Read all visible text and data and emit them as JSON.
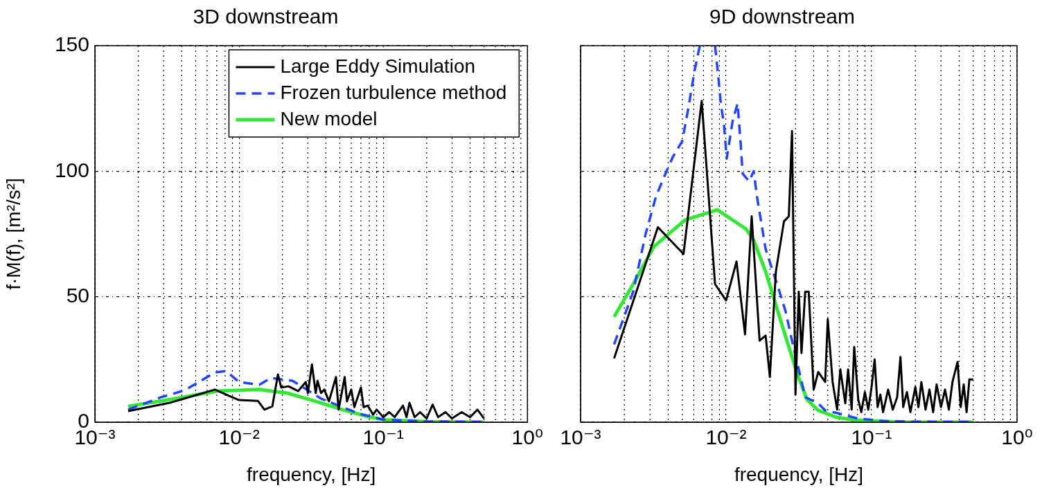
{
  "chart_data": [
    {
      "type": "line",
      "title": "3D downstream",
      "xlabel": "frequency, [Hz]",
      "ylabel": "f·M(f), [m²/s²]",
      "log": "x",
      "grid": true,
      "legend": "top right",
      "xlim": [
        0.001,
        1
      ],
      "xticks": [
        {
          "value": 0.001,
          "label": "10⁻³"
        },
        {
          "value": 0.01,
          "label": "10⁻²"
        },
        {
          "value": 0.1,
          "label": "10⁻¹"
        },
        {
          "value": 1,
          "label": "10⁰"
        }
      ],
      "ylim": [
        0,
        150
      ],
      "yticks": [
        0,
        50,
        100,
        150
      ],
      "series": [
        {
          "name": "Large Eddy Simulation",
          "color": "#000000",
          "line_style": "solid",
          "x": [
            0.0017,
            0.0033,
            0.0068,
            0.0085,
            0.01,
            0.0135,
            0.015,
            0.017,
            0.0186,
            0.0196,
            0.022,
            0.0257,
            0.029,
            0.03,
            0.032,
            0.034,
            0.035,
            0.037,
            0.039,
            0.042,
            0.047,
            0.049,
            0.054,
            0.056,
            0.06,
            0.063,
            0.07,
            0.073,
            0.078,
            0.085,
            0.09,
            0.1,
            0.11,
            0.12,
            0.137,
            0.145,
            0.152,
            0.165,
            0.18,
            0.2,
            0.22,
            0.24,
            0.27,
            0.3,
            0.35,
            0.4,
            0.45,
            0.5
          ],
          "values": [
            4.4,
            7.7,
            13,
            10.5,
            8.8,
            8.5,
            5,
            6.3,
            19,
            13.8,
            14.3,
            12.4,
            16,
            11.6,
            23,
            11.6,
            16.5,
            11.6,
            13,
            8.3,
            18,
            5,
            18,
            8.3,
            13,
            6,
            13.8,
            6,
            6.6,
            3,
            5,
            2,
            4,
            2,
            6.6,
            2,
            7.7,
            2,
            4,
            1.5,
            7,
            2,
            4,
            1.5,
            4,
            2,
            5,
            1.5
          ]
        },
        {
          "name": "Frozen turbulence method",
          "color": "#2244ff",
          "line_style": "dashed",
          "x": [
            0.0017,
            0.0029,
            0.0042,
            0.0068,
            0.0081,
            0.01,
            0.0138,
            0.0166,
            0.0235,
            0.029,
            0.037,
            0.052,
            0.069,
            0.1,
            0.2,
            0.5
          ],
          "values": [
            5,
            10,
            12.7,
            19.8,
            20.4,
            16,
            14.9,
            17.6,
            16.5,
            13.2,
            9.4,
            6,
            3.3,
            1,
            0.3,
            0.1
          ]
        },
        {
          "name": "New model",
          "color": "#33e833",
          "line_style": "solid",
          "x": [
            0.0017,
            0.0036,
            0.0071,
            0.0138,
            0.0215,
            0.034,
            0.052,
            0.075,
            0.1,
            0.2,
            0.5
          ],
          "values": [
            6.3,
            9.4,
            12.4,
            13,
            11.6,
            8.3,
            5,
            2.5,
            1,
            0.2,
            0
          ]
        }
      ]
    },
    {
      "type": "line",
      "title": "9D downstream",
      "xlabel": "frequency, [Hz]",
      "log": "x",
      "grid": true,
      "tick_labels": "x",
      "xlim": [
        0.001,
        1
      ],
      "xticks": [
        {
          "value": 0.001,
          "label": "10⁻³"
        },
        {
          "value": 0.01,
          "label": "10⁻²"
        },
        {
          "value": 0.1,
          "label": "10⁻¹"
        },
        {
          "value": 1,
          "label": "10⁰"
        }
      ],
      "ylim": [
        0,
        150
      ],
      "yticks": [
        0,
        50,
        100,
        150
      ],
      "series": [
        {
          "color": "#000000",
          "line_style": "solid",
          "x": [
            0.0017,
            0.0034,
            0.0051,
            0.0068,
            0.0084,
            0.01,
            0.0118,
            0.0135,
            0.015,
            0.017,
            0.0187,
            0.02,
            0.022,
            0.025,
            0.027,
            0.0284,
            0.03,
            0.0316,
            0.033,
            0.035,
            0.037,
            0.04,
            0.043,
            0.048,
            0.05,
            0.054,
            0.058,
            0.061,
            0.066,
            0.069,
            0.073,
            0.076,
            0.081,
            0.085,
            0.09,
            0.095,
            0.1,
            0.105,
            0.11,
            0.115,
            0.12,
            0.13,
            0.14,
            0.15,
            0.158,
            0.165,
            0.175,
            0.185,
            0.2,
            0.21,
            0.22,
            0.235,
            0.25,
            0.265,
            0.28,
            0.3,
            0.32,
            0.34,
            0.36,
            0.39,
            0.41,
            0.43,
            0.45,
            0.47,
            0.5
          ],
          "values": [
            25.4,
            77.7,
            67,
            128,
            55,
            48.5,
            64,
            35,
            82,
            32.5,
            34.5,
            18,
            60,
            80,
            82,
            116,
            11,
            52,
            27.5,
            52,
            52,
            13,
            20,
            16,
            41,
            16,
            5,
            21,
            7.5,
            21,
            5,
            30,
            9,
            4,
            12,
            5,
            14,
            25,
            6,
            11,
            4,
            13,
            5,
            10,
            26,
            6,
            12,
            4,
            14,
            6,
            16,
            5,
            13,
            4,
            15,
            6,
            13,
            5,
            16,
            24,
            6,
            15,
            4,
            17,
            17
          ]
        },
        {
          "color": "#2244ff",
          "line_style": "dashed",
          "x": [
            0.0017,
            0.0023,
            0.0028,
            0.0033,
            0.0038,
            0.0043,
            0.005,
            0.0055,
            0.0061,
            0.0066,
            0.0075,
            0.0084,
            0.0089,
            0.0092,
            0.0097,
            0.0101,
            0.0111,
            0.012,
            0.0126,
            0.013,
            0.0144,
            0.0155,
            0.0163,
            0.0174,
            0.0187,
            0.021,
            0.023,
            0.0257,
            0.028,
            0.0316,
            0.035,
            0.043,
            0.048,
            0.059,
            0.08,
            0.12,
            0.2,
            0.5
          ],
          "values": [
            31,
            52,
            75,
            90,
            98.5,
            105.6,
            112,
            125,
            140.6,
            150,
            null,
            150,
            136,
            127,
            118,
            105,
            120,
            127,
            111,
            99,
            96,
            100,
            90,
            80,
            69,
            60,
            53,
            44,
            34,
            21,
            10,
            7.5,
            4.7,
            3.5,
            1.5,
            0.5,
            0.2,
            0.1
          ]
        },
        {
          "color": "#33e833",
          "line_style": "solid",
          "x": [
            0.0017,
            0.0023,
            0.0032,
            0.0052,
            0.0087,
            0.0137,
            0.0155,
            0.0187,
            0.0214,
            0.0257,
            0.031,
            0.036,
            0.043,
            0.057,
            0.076,
            0.15,
            0.5
          ],
          "values": [
            42,
            55,
            70,
            80.5,
            84.6,
            77,
            72.5,
            60,
            49,
            34,
            19,
            9,
            4.7,
            2,
            0.8,
            0.1,
            0
          ]
        }
      ]
    }
  ]
}
